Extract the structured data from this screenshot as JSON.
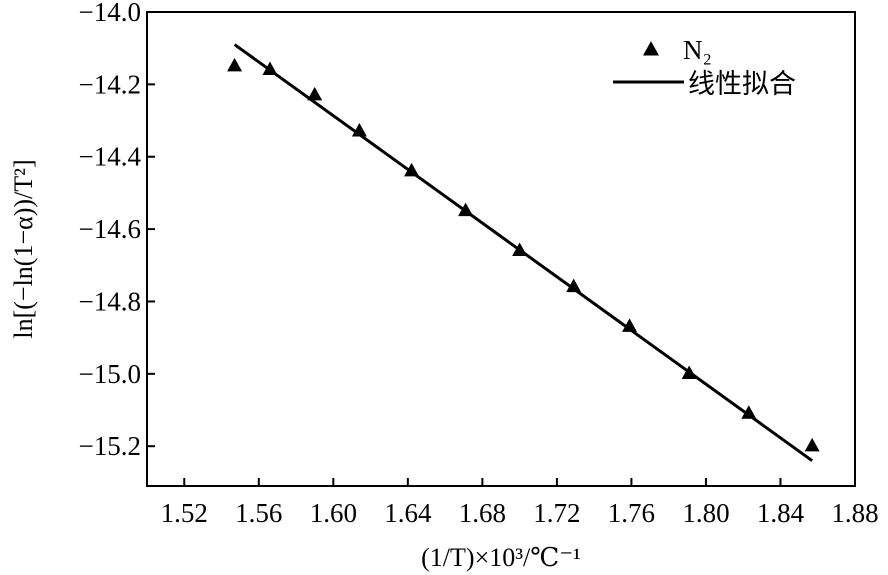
{
  "chart_data": {
    "type": "scatter",
    "xlabel": "(1/T)×10³/℃⁻¹",
    "ylabel": "ln[(−ln(1−α))/T²]",
    "xlim": [
      1.5,
      1.88
    ],
    "ylim": [
      -15.31,
      -14.0
    ],
    "x_ticks": [
      1.52,
      1.56,
      1.6,
      1.64,
      1.68,
      1.72,
      1.76,
      1.8,
      1.84,
      1.88
    ],
    "x_tick_labels": [
      "1.52",
      "1.56",
      "1.60",
      "1.64",
      "1.68",
      "1.72",
      "1.76",
      "1.80",
      "1.84",
      "1.88"
    ],
    "y_ticks": [
      -14.0,
      -14.2,
      -14.4,
      -14.6,
      -14.8,
      -15.0,
      -15.2
    ],
    "y_tick_labels": [
      "−14.0",
      "−14.2",
      "−14.4",
      "−14.6",
      "−14.8",
      "−15.0",
      "−15.2"
    ],
    "grid": false,
    "legend_position": "top-right",
    "series": [
      {
        "name": "N₂",
        "type": "scatter",
        "marker": "triangle",
        "color": "#000000",
        "x": [
          1.547,
          1.566,
          1.59,
          1.614,
          1.642,
          1.671,
          1.7,
          1.729,
          1.759,
          1.791,
          1.823,
          1.857
        ],
        "y": [
          -14.15,
          -14.16,
          -14.23,
          -14.33,
          -14.44,
          -14.55,
          -14.66,
          -14.76,
          -14.87,
          -15.0,
          -15.11,
          -15.2
        ]
      },
      {
        "name": "线性拟合",
        "type": "line",
        "color": "#000000",
        "x": [
          1.547,
          1.857
        ],
        "y": [
          -14.09,
          -15.24
        ]
      }
    ]
  }
}
